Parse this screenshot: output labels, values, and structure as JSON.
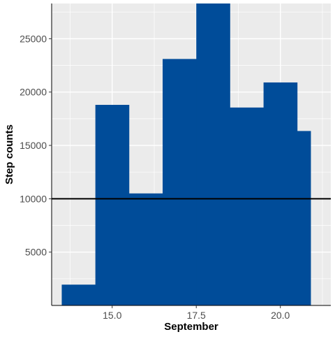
{
  "chart_data": {
    "type": "bar",
    "title": "",
    "xlabel": "September",
    "ylabel": "Step counts",
    "x": [
      14,
      15,
      16,
      17,
      18,
      19,
      20,
      20.7
    ],
    "widths": [
      1,
      1,
      1,
      1,
      1,
      1,
      1,
      0.4
    ],
    "values": [
      1950,
      18800,
      10500,
      23100,
      28500,
      18550,
      20900,
      16350
    ],
    "xlim": [
      13.2,
      21.5
    ],
    "ylim": [
      0,
      28300
    ],
    "x_ticks": [
      15.0,
      17.5,
      20.0
    ],
    "x_tick_labels": [
      "15.0",
      "17.5",
      "20.0"
    ],
    "y_ticks": [
      5000,
      10000,
      15000,
      20000,
      25000
    ],
    "y_tick_labels": [
      "5000",
      "10000",
      "15000",
      "20000",
      "25000"
    ],
    "reference_line": {
      "y": 10000,
      "color": "#000000"
    },
    "grid": true,
    "bar_color": "#004C99",
    "panel_background": "#EBEBEB",
    "grid_color": "#FFFFFF"
  }
}
